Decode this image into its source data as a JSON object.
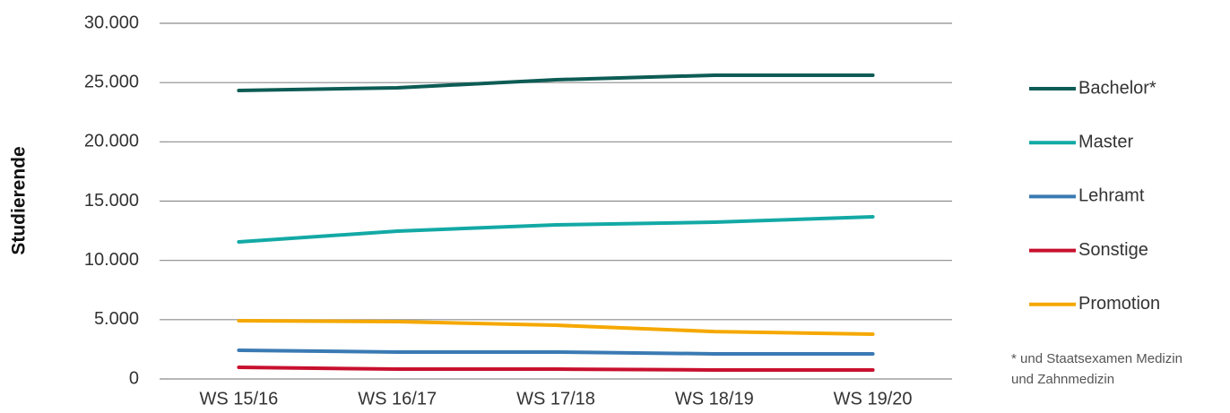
{
  "chart_data": {
    "type": "line",
    "y_label": "Studierende",
    "categories": [
      "WS 15/16",
      "WS 16/17",
      "WS 17/18",
      "WS 18/19",
      "WS 19/20"
    ],
    "series": [
      {
        "name": "Bachelor*",
        "color": "#0d5c55",
        "values": [
          24330,
          24560,
          25240,
          25620,
          25620
        ]
      },
      {
        "name": "Master",
        "color": "#13a9a5",
        "values": [
          11560,
          12470,
          13000,
          13220,
          13680
        ]
      },
      {
        "name": "Lehramt",
        "color": "#3a7ab3",
        "values": [
          2420,
          2270,
          2270,
          2120,
          2120
        ]
      },
      {
        "name": "Sonstige",
        "color": "#c8102e",
        "values": [
          980,
          830,
          830,
          760,
          760
        ]
      },
      {
        "name": "Promotion",
        "color": "#f5a800",
        "values": [
          4910,
          4840,
          4530,
          4000,
          3780
        ]
      }
    ],
    "ylim": [
      0,
      30000
    ],
    "yticks": [
      0,
      {
        "value": 5000,
        "label": "5.000"
      },
      {
        "value": 10000,
        "label": "10.000"
      },
      {
        "value": 15000,
        "label": "15.000"
      },
      {
        "value": 20000,
        "label": "20.000"
      },
      {
        "value": 25000,
        "label": "25.000"
      },
      {
        "value": 30000,
        "label": "30.000"
      }
    ],
    "grid": true,
    "legend": "right",
    "footnote": [
      "* und Staatsexamen Medizin",
      "und Zahnmedizin"
    ]
  }
}
